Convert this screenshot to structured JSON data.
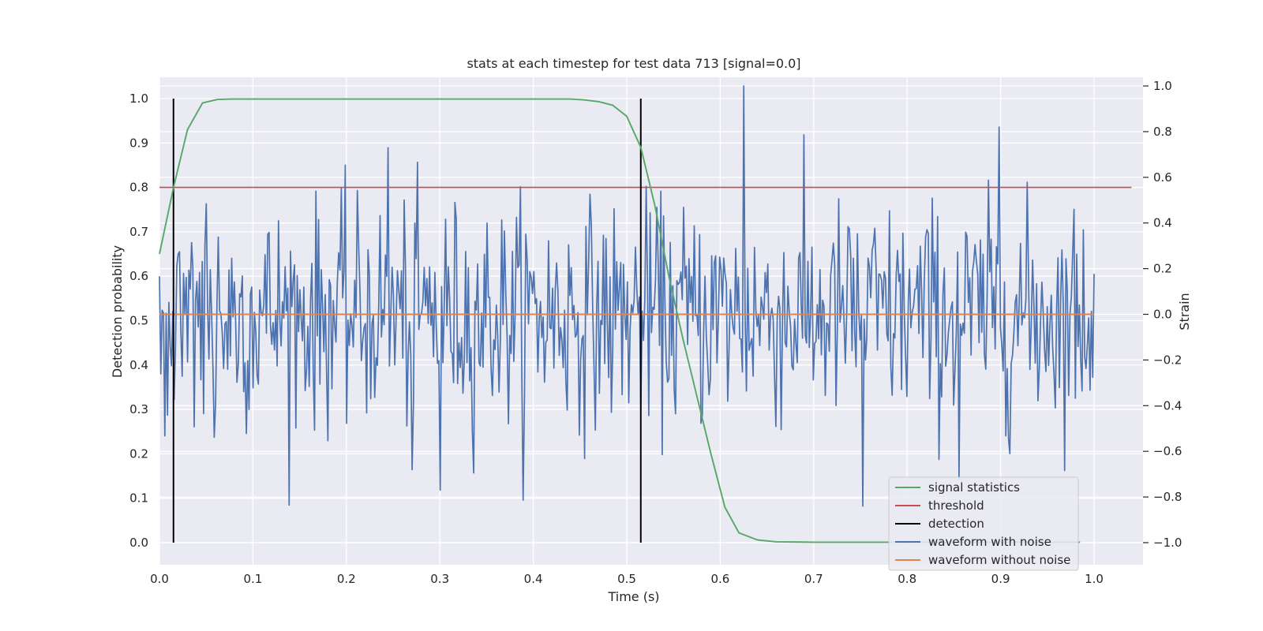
{
  "chart_data": {
    "type": "line",
    "title": "stats at each timestep for test data 713 [signal=0.0]",
    "xlabel": "Time (s)",
    "ylabel": "Detection probability",
    "y2label": "Strain",
    "xlim": [
      0.0,
      1.05
    ],
    "ylim": [
      -0.05,
      1.05
    ],
    "y2lim": [
      -1.09,
      1.03
    ],
    "xticks": [
      "0.0",
      "0.1",
      "0.2",
      "0.3",
      "0.4",
      "0.5",
      "0.6",
      "0.7",
      "0.8",
      "0.9",
      "1.0"
    ],
    "yticks": [
      "0.0",
      "0.1",
      "0.2",
      "0.3",
      "0.4",
      "0.5",
      "0.6",
      "0.7",
      "0.8",
      "0.9",
      "1.0"
    ],
    "y2ticks": [
      "−1.0",
      "−0.8",
      "−0.6",
      "−0.4",
      "−0.2",
      "0.0",
      "0.2",
      "0.4",
      "0.6",
      "0.8",
      "1.0"
    ],
    "grid": true,
    "legend_position": "lower-right",
    "series": [
      {
        "name": "signal statistics",
        "color": "#55a868",
        "axis": "left",
        "x": [
          0.0,
          0.015,
          0.03,
          0.046,
          0.062,
          0.077,
          0.1,
          0.2,
          0.3,
          0.4,
          0.44,
          0.455,
          0.47,
          0.485,
          0.5,
          0.515,
          0.53,
          0.545,
          0.56,
          0.575,
          0.59,
          0.605,
          0.62,
          0.64,
          0.66,
          0.7,
          0.8,
          0.9,
          0.985
        ],
        "y": [
          0.65,
          0.8,
          0.93,
          0.99,
          0.998,
          0.999,
          0.999,
          0.999,
          0.999,
          0.999,
          0.999,
          0.997,
          0.993,
          0.985,
          0.96,
          0.89,
          0.76,
          0.6,
          0.46,
          0.33,
          0.2,
          0.08,
          0.022,
          0.006,
          0.002,
          0.001,
          0.001,
          0.001,
          0.001
        ]
      },
      {
        "name": "threshold",
        "color": "#c44e52",
        "axis": "left",
        "x": [
          0.0,
          1.04
        ],
        "y": [
          0.8,
          0.8
        ]
      },
      {
        "name": "detection",
        "color": "#000000",
        "axis": "left",
        "segments": [
          {
            "x": 0.015,
            "y": [
              0.0,
              1.0
            ]
          },
          {
            "x": 0.515,
            "y": [
              0.0,
              1.0
            ]
          }
        ]
      },
      {
        "name": "waveform with noise",
        "color": "#4c72b0",
        "axis": "right",
        "x_range": [
          0.0,
          1.0
        ],
        "n_points": 700,
        "y_range": [
          -0.84,
          1.0
        ],
        "y_std": 0.24,
        "peaks": [
          {
            "x": 0.625,
            "y": 1.0
          },
          {
            "x": 0.899,
            "y": 0.82
          },
          {
            "x": 0.245,
            "y": 0.73
          },
          {
            "x": 0.3,
            "y": -0.77
          },
          {
            "x": 0.27,
            "y": -0.68
          },
          {
            "x": 0.752,
            "y": -0.84
          },
          {
            "x": 0.855,
            "y": -0.72
          }
        ]
      },
      {
        "name": "waveform without noise",
        "color": "#dd8452",
        "axis": "right",
        "x": [
          0.0,
          1.0
        ],
        "y": [
          0.0,
          0.0
        ]
      }
    ]
  }
}
